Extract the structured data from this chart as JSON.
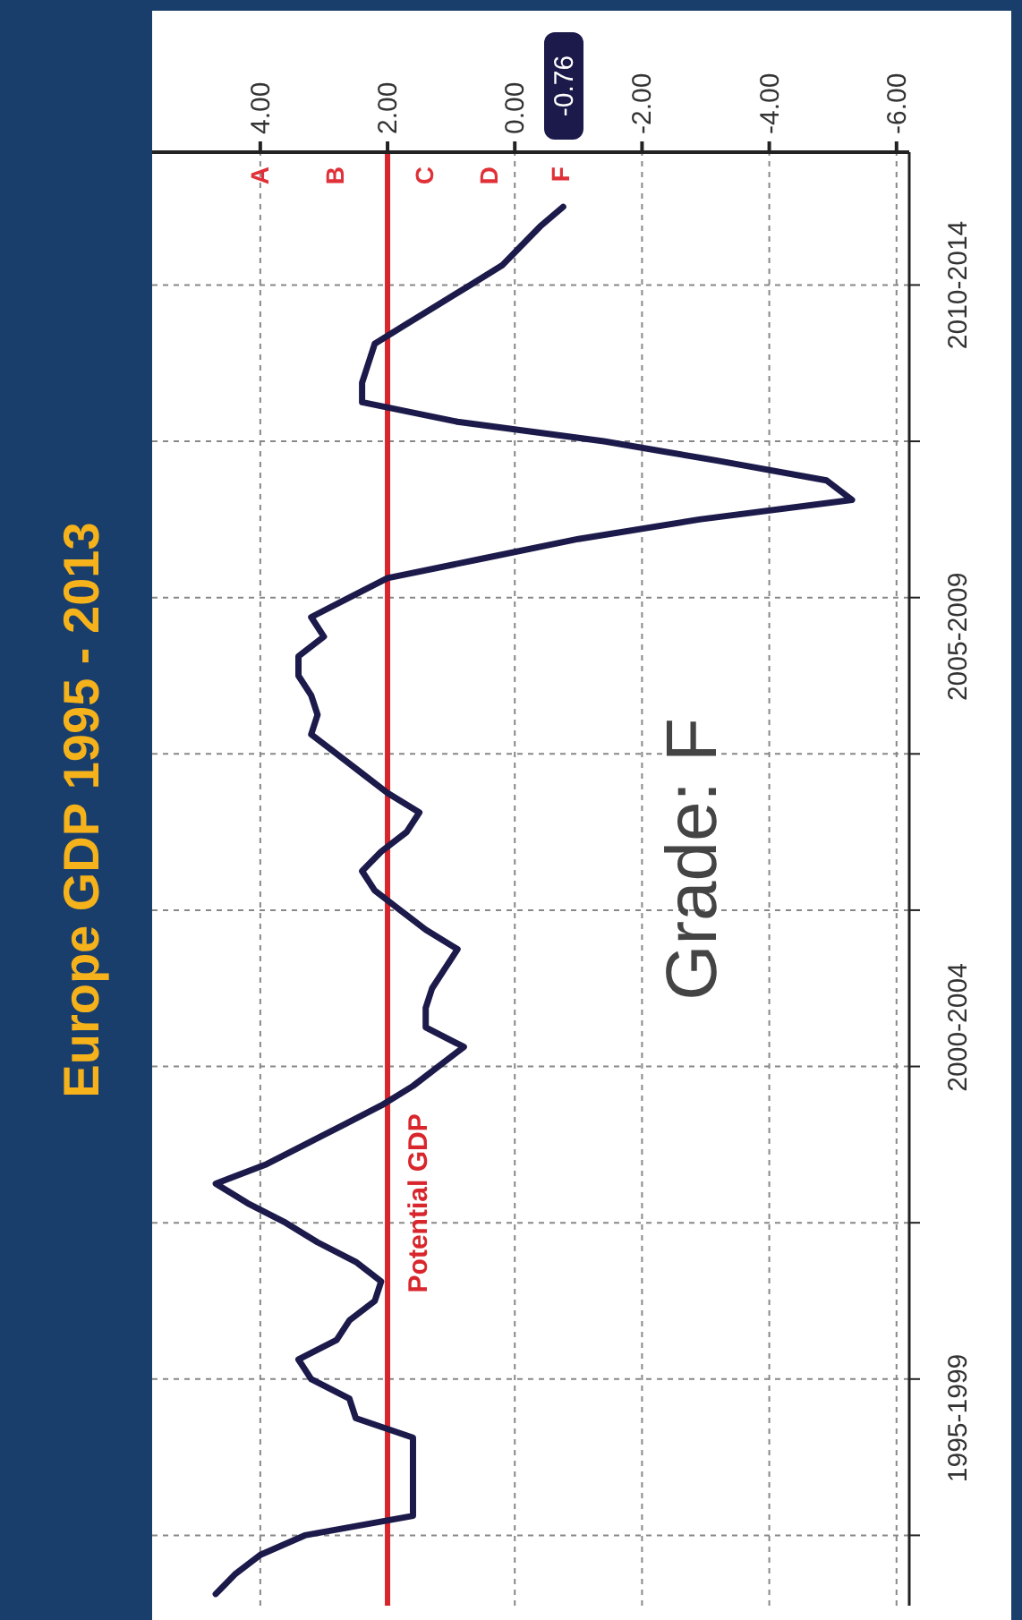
{
  "chart_data": {
    "type": "line",
    "title": "Europe GDP 1995 - 2013",
    "orientation": "horizontal",
    "categories": [
      null,
      null,
      null,
      null,
      "2010-2014",
      null,
      null,
      null,
      null,
      null,
      null,
      null,
      null,
      null,
      null,
      null,
      null,
      null,
      null,
      null,
      null,
      null,
      "2005-2009",
      null,
      null,
      null,
      null,
      null,
      null,
      null,
      null,
      null,
      null,
      null,
      null,
      null,
      null,
      null,
      null,
      null,
      null,
      null,
      "2000-2004",
      null,
      null,
      null,
      null,
      null,
      null,
      null,
      null,
      null,
      null,
      null,
      null,
      null,
      null,
      null,
      null,
      null,
      null,
      null,
      "1995-1999",
      null,
      null,
      null,
      null,
      null,
      null,
      null,
      null,
      null
    ],
    "series": [
      {
        "color": "#1c1a4a",
        "values": [
          -0.76,
          -0.4,
          -0.1,
          0.2,
          0.7,
          1.2,
          1.7,
          2.2,
          2.3,
          2.4,
          2.4,
          0.9,
          -1.4,
          -3.2,
          -4.9,
          -5.3,
          -2.9,
          -1.0,
          0.5,
          2.0,
          2.6,
          3.2,
          3.0,
          3.4,
          3.4,
          3.2,
          3.1,
          3.2,
          2.8,
          2.4,
          2.0,
          1.5,
          1.7,
          2.1,
          2.4,
          2.2,
          1.8,
          1.4,
          0.9,
          1.1,
          1.3,
          1.4,
          1.4,
          0.8,
          1.2,
          1.6,
          2.1,
          2.7,
          3.3,
          3.9,
          4.7,
          4.2,
          3.6,
          3.1,
          2.5,
          2.1,
          2.2,
          2.6,
          2.8,
          3.4,
          3.2,
          2.6,
          2.5,
          1.6,
          1.6,
          1.6,
          1.6,
          1.6,
          3.3,
          4.0,
          4.4,
          4.7
        ]
      }
    ],
    "xlim": [
      5.7,
      -6.2
    ],
    "xticks": [
      {
        "value": 4,
        "label": "4.00"
      },
      {
        "value": 2,
        "label": "2.00"
      },
      {
        "value": 0,
        "label": "0.00"
      },
      {
        "value": -2,
        "label": "-2.00"
      },
      {
        "value": -4,
        "label": "-4.00"
      },
      {
        "value": -6,
        "label": "-6.00"
      }
    ],
    "ref_lines": [
      {
        "axis": "x",
        "value": 2,
        "label": "Potential GDP",
        "color": "#d8262c"
      }
    ],
    "annotations": [
      "A",
      "B",
      "C",
      "D",
      "F",
      "-0.76",
      "Grade: F"
    ],
    "grid": true,
    "line_style": "solid",
    "marker": "none"
  }
}
